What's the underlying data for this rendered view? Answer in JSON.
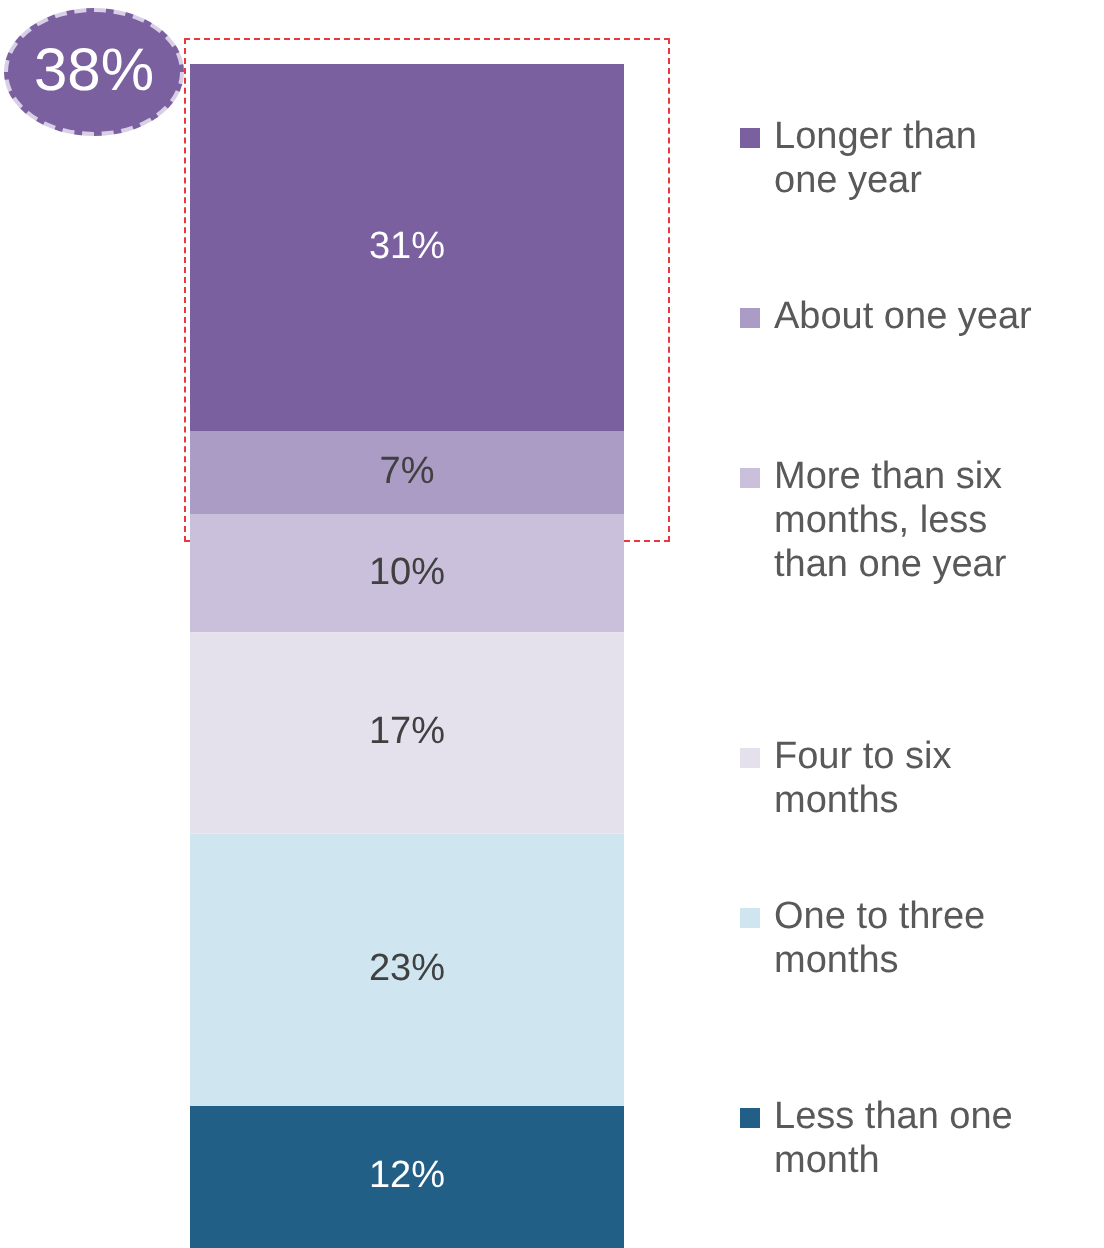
{
  "chart_data": {
    "type": "bar",
    "stacked": true,
    "categories": [
      null
    ],
    "legend": "right",
    "annotations": [
      "38%"
    ],
    "series": [
      {
        "name": "Less than one month",
        "color": "#225f87",
        "values": [
          12
        ],
        "value_labels": [
          "12%"
        ]
      },
      {
        "name": "One to three months",
        "color": "#cfe6f1",
        "values": [
          23
        ],
        "value_labels": [
          "23%"
        ]
      },
      {
        "name": "Four to six months",
        "color": "#e4e1ec",
        "values": [
          17
        ],
        "value_labels": [
          "17%"
        ]
      },
      {
        "name": "More than six months, less than one year",
        "color": "#cbc0db",
        "values": [
          10
        ],
        "value_labels": [
          "10%"
        ]
      },
      {
        "name": "About one year",
        "color": "#ab9cc5",
        "values": [
          7
        ],
        "value_labels": [
          "7%"
        ]
      },
      {
        "name": "Longer than one year",
        "color": "#7b609f",
        "values": [
          31
        ],
        "value_labels": [
          "31%"
        ]
      }
    ]
  }
}
